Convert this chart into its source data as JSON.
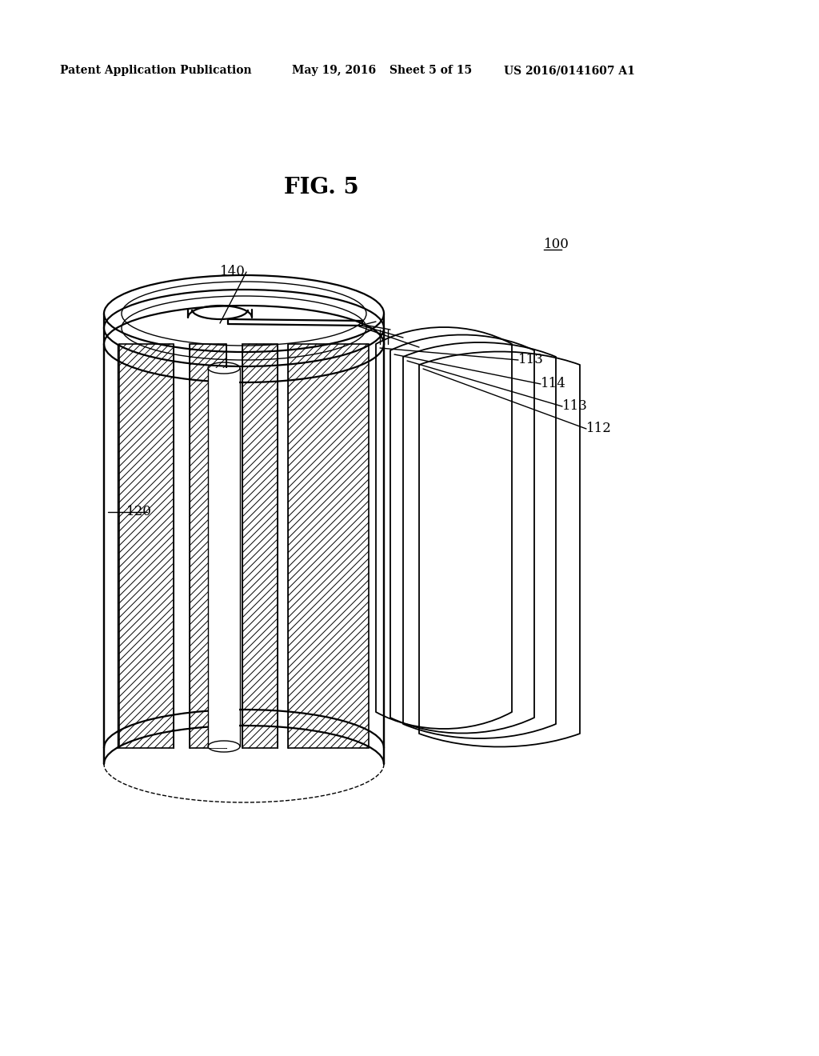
{
  "background_color": "#ffffff",
  "header_text": "Patent Application Publication",
  "header_date": "May 19, 2016",
  "header_sheet": "Sheet 5 of 15",
  "header_patent": "US 2016/0141607 A1",
  "fig_label": "FIG. 5",
  "line_color": "#000000",
  "lw_main": 1.6,
  "lw_thin": 1.0,
  "label_fontsize": 12,
  "fig_label_fontsize": 20,
  "header_fontsize": 10
}
